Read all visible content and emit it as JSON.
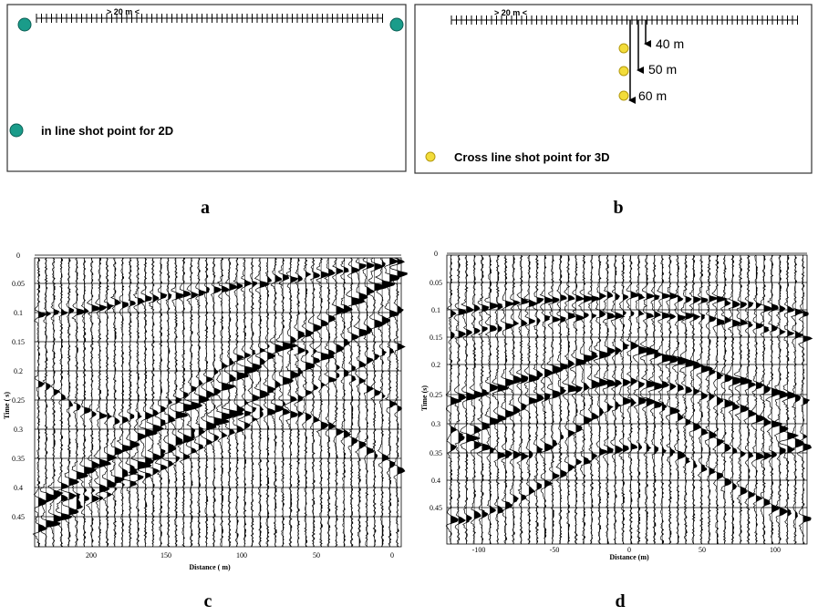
{
  "panels": {
    "a": {
      "label": "a",
      "spacing": "> 20 m <",
      "legend": "in line shot point for 2D"
    },
    "b": {
      "label": "b",
      "spacing": "> 20 m <",
      "legend": "Cross line shot point for 3D",
      "offsets": [
        "40 m",
        "50 m",
        "60 m"
      ]
    },
    "c": {
      "label": "c",
      "ylabel": "Time ( s)",
      "xlabel": "Distance ( m)",
      "yticks": [
        "0",
        "0.05",
        "0.1",
        "0.15",
        "0.2",
        "0.25",
        "0.3",
        "0.35",
        "0.4",
        "0.45"
      ],
      "xticks": [
        "200",
        "150",
        "100",
        "50",
        "0"
      ]
    },
    "d": {
      "label": "d",
      "ylabel": "Time (s)",
      "xlabel": "Distance (m)",
      "yticks": [
        "0",
        "0.05",
        "0.1",
        "0.15",
        "0.2",
        "0.25",
        "0.3",
        "0.35",
        "0.4",
        "0.45"
      ],
      "xticks": [
        "-100",
        "-50",
        "0",
        "50",
        "100"
      ]
    }
  }
}
